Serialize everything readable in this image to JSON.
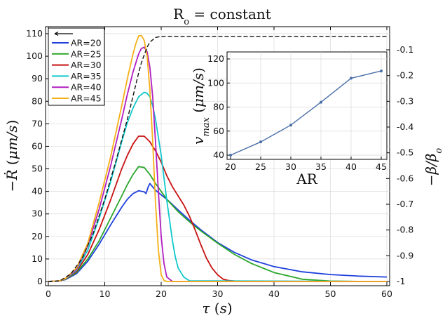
{
  "chart_data": [
    {
      "type": "line",
      "title": "R_o = constant",
      "xlabel": "τ (s)",
      "ylabel": "-Ṙ (μm/s)",
      "y2label": "-β/β_o",
      "xlim": [
        0,
        60
      ],
      "ylim": [
        -1,
        113
      ],
      "y2lim": [
        -1,
        -0.04
      ],
      "xticks": [
        0,
        10,
        20,
        30,
        40,
        50,
        60
      ],
      "yticks": [
        0,
        10,
        20,
        30,
        40,
        50,
        60,
        70,
        80,
        90,
        100,
        110
      ],
      "y2ticks": [
        -1,
        -0.9,
        -0.8,
        -0.7,
        -0.6,
        -0.5,
        -0.4,
        -0.3,
        -0.2,
        -0.1
      ],
      "y2ticklabels": [
        "-1",
        "-0.9",
        "-0.8",
        "-0.7",
        "-0.6",
        "-0.5",
        "-0.4",
        "-0.3",
        "-0.2",
        "-0.1"
      ],
      "grid": true,
      "legend": "top-left",
      "legend_arrow": "←",
      "series": [
        {
          "name": "AR=20",
          "color": "#1f3fdc",
          "x": [
            0,
            2,
            3,
            5,
            7,
            9,
            11,
            13,
            14,
            15,
            16,
            17,
            17.3,
            17.7,
            18,
            19,
            21,
            23,
            25,
            27,
            30,
            33,
            36,
            40,
            45,
            50,
            55,
            60
          ],
          "y": [
            0,
            0.3,
            0.8,
            3.5,
            9,
            16.5,
            25,
            33,
            36.5,
            39,
            40.3,
            39.8,
            39,
            42,
            43.5,
            40.5,
            36.5,
            31.8,
            27.2,
            23,
            17.3,
            12.9,
            9.6,
            6.6,
            4.3,
            3.1,
            2.4,
            2
          ]
        },
        {
          "name": "AR=25",
          "color": "#2aa62a",
          "x": [
            0,
            2,
            3,
            5,
            7,
            9,
            11,
            13,
            14,
            15,
            16,
            17,
            18,
            19,
            20,
            21,
            23,
            25,
            27,
            30,
            33,
            36,
            40,
            45,
            50,
            55,
            60
          ],
          "y": [
            0,
            0.3,
            0.9,
            4,
            10,
            18,
            28,
            38,
            43,
            47.5,
            51,
            50.6,
            47.5,
            43.5,
            40,
            36.5,
            31,
            26.5,
            22.5,
            17,
            12,
            8,
            4,
            1,
            0.2,
            0,
            0
          ]
        },
        {
          "name": "AR=30",
          "color": "#c81010",
          "x": [
            0,
            2,
            3,
            5,
            7,
            9,
            11,
            13,
            14,
            15,
            16,
            17,
            18,
            19,
            20,
            21,
            22,
            23,
            24,
            25,
            26,
            27,
            28,
            29,
            30,
            31,
            32,
            34,
            60
          ],
          "y": [
            0,
            0.3,
            1,
            4.5,
            12,
            23,
            36,
            50,
            56,
            61,
            64.5,
            64.5,
            62,
            58,
            53,
            47,
            42,
            38,
            34,
            29,
            23,
            16.5,
            10.5,
            6,
            3,
            1,
            0.4,
            0,
            0
          ]
        },
        {
          "name": "AR=35",
          "color": "#10c8cc",
          "x": [
            0,
            2,
            3,
            5,
            7,
            9,
            11,
            13,
            14,
            15,
            16,
            17,
            17.5,
            18,
            18.5,
            19,
            19.5,
            20,
            20.5,
            21,
            21.5,
            22,
            22.5,
            23,
            24,
            25,
            60
          ],
          "y": [
            0,
            0.3,
            1.1,
            5,
            14,
            28,
            44,
            62,
            70.5,
            77,
            82,
            84,
            83.5,
            82,
            78,
            72,
            64,
            56,
            46,
            36,
            27,
            18,
            11,
            6,
            2,
            0.3,
            0
          ]
        },
        {
          "name": "AR=40",
          "color": "#b21ec0",
          "x": [
            0,
            2,
            3,
            5,
            7,
            9,
            11,
            13,
            14,
            15,
            15.5,
            16,
            16.5,
            17,
            17.5,
            18,
            18.5,
            19,
            19.5,
            20,
            20.5,
            21,
            22,
            60
          ],
          "y": [
            0,
            0.3,
            1.2,
            5.5,
            16,
            32,
            51,
            72,
            83,
            93,
            97,
            101,
            103.5,
            104,
            102,
            95,
            82,
            62,
            40,
            20,
            8,
            2,
            0,
            0
          ]
        },
        {
          "name": "AR=45",
          "color": "#f5b018",
          "x": [
            0,
            2,
            3,
            5,
            7,
            9,
            11,
            13,
            14,
            15,
            15.5,
            16,
            16.5,
            17,
            17.5,
            18,
            18.5,
            19,
            19.5,
            20,
            20.5,
            21,
            60
          ],
          "y": [
            0,
            0.3,
            1.3,
            6,
            17,
            35,
            55,
            78,
            90,
            101,
            105.5,
            109,
            109.2,
            107,
            100,
            85,
            62,
            35,
            14,
            3,
            0.5,
            0,
            0
          ]
        },
        {
          "name": "",
          "color": "#111111",
          "dashed": true,
          "axis": "right",
          "x": [
            0,
            2,
            4,
            6,
            8,
            10,
            12,
            14,
            15,
            16,
            16.5,
            17,
            17.5,
            18,
            19,
            20,
            25,
            30,
            40,
            50,
            60
          ],
          "y": [
            -1,
            -0.998,
            -0.97,
            -0.91,
            -0.81,
            -0.68,
            -0.53,
            -0.37,
            -0.28,
            -0.19,
            -0.15,
            -0.12,
            -0.09,
            -0.07,
            -0.052,
            -0.048,
            -0.048,
            -0.048,
            -0.048,
            -0.048,
            -0.048
          ]
        }
      ]
    },
    {
      "type": "line",
      "title": "",
      "xlabel": "AR",
      "ylabel": "v_max (μm/s)",
      "xlim": [
        19.5,
        45.5
      ],
      "ylim": [
        36,
        120
      ],
      "xticks": [
        20,
        25,
        30,
        35,
        40,
        45
      ],
      "yticks": [
        40,
        60,
        80,
        100,
        120
      ],
      "grid": true,
      "series": [
        {
          "name": "",
          "color": "#4a6fa8",
          "marker": "dot",
          "x": [
            20,
            25,
            30,
            35,
            40,
            45
          ],
          "y": [
            40,
            51,
            65,
            84,
            104,
            110
          ]
        }
      ]
    }
  ]
}
